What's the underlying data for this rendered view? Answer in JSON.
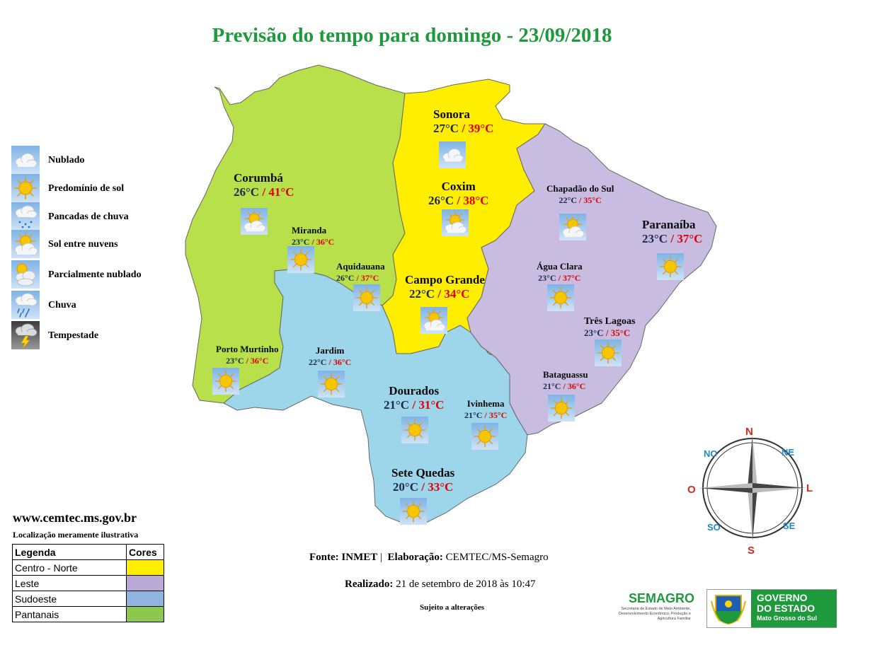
{
  "title": "Previsão do tempo para domingo - 23/09/2018",
  "icon_legend": [
    {
      "label": "Nublado",
      "icon": "cloudy-icon"
    },
    {
      "label": "Predomínio de sol",
      "icon": "sun-icon"
    },
    {
      "label": "Pancadas de chuva",
      "icon": "showers-icon"
    },
    {
      "label": "Sol entre nuvens",
      "icon": "sun-cloud-icon"
    },
    {
      "label": "Parcialmente nublado",
      "icon": "partly-cloudy-icon"
    },
    {
      "label": "Chuva",
      "icon": "rain-icon"
    },
    {
      "label": "Tempestade",
      "icon": "storm-icon"
    }
  ],
  "region_colors": {
    "centro_norte": "#ffee00",
    "leste": "#c8bce0",
    "sudoeste": "#9dd6ea",
    "pantanais": "#b8e04a",
    "legend_sudoeste": "#8fb4e0",
    "legend_pantanais": "#8cc850"
  },
  "cities": {
    "corumba": {
      "name": "Corumbá",
      "tmin": "26°C",
      "tmax": "41°C",
      "icon": "sun-cloud-icon"
    },
    "sonora": {
      "name": "Sonora",
      "tmin": "27°C",
      "tmax": "39°C",
      "icon": "cloudy-icon"
    },
    "coxim": {
      "name": "Coxim",
      "tmin": "26°C",
      "tmax": "38°C",
      "icon": "sun-cloud-icon"
    },
    "chapadao": {
      "name": "Chapadão do Sul",
      "tmin": "22°C",
      "tmax": "35°C",
      "icon": "sun-cloud-icon"
    },
    "paranaiba": {
      "name": "Paranaíba",
      "tmin": "23°C",
      "tmax": "37°C",
      "icon": "sun-icon"
    },
    "miranda": {
      "name": "Miranda",
      "tmin": "23°C",
      "tmax": "36°C",
      "icon": "sun-icon"
    },
    "aquidauana": {
      "name": "Aquidauana",
      "tmin": "26°C",
      "tmax": "37°C",
      "icon": "sun-icon"
    },
    "campo_grande": {
      "name": "Campo Grande",
      "tmin": "22°C",
      "tmax": "34°C",
      "icon": "sun-cloud-icon"
    },
    "agua_clara": {
      "name": "Água Clara",
      "tmin": "23°C",
      "tmax": "37°C",
      "icon": "sun-icon"
    },
    "tres_lagoas": {
      "name": "Três Lagoas",
      "tmin": "23°C",
      "tmax": "35°C",
      "icon": "sun-icon"
    },
    "porto_murtinho": {
      "name": "Porto Murtinho",
      "tmin": "23°C",
      "tmax": "36°C",
      "icon": "sun-icon"
    },
    "jardim": {
      "name": "Jardim",
      "tmin": "22°C",
      "tmax": "36°C",
      "icon": "sun-icon"
    },
    "bataguassu": {
      "name": "Bataguassu",
      "tmin": "21°C",
      "tmax": "36°C",
      "icon": "sun-icon"
    },
    "dourados": {
      "name": "Dourados",
      "tmin": "21°C",
      "tmax": "31°C",
      "icon": "sun-icon"
    },
    "ivinhema": {
      "name": "Ivinhema",
      "tmin": "21°C",
      "tmax": "35°C",
      "icon": "sun-icon"
    },
    "sete_quedas": {
      "name": "Sete Quedas",
      "tmin": "20°C",
      "tmax": "33°C",
      "icon": "sun-icon"
    }
  },
  "temp_separator": "/",
  "website": "www.cemtec.ms.gov.br",
  "location_note": "Localização meramente ilustrativa",
  "regions_table": {
    "header_legend": "Legenda",
    "header_colors": "Cores",
    "rows": [
      {
        "label": "Centro - Norte"
      },
      {
        "label": "Leste"
      },
      {
        "label": "Sudoeste"
      },
      {
        "label": "Pantanais"
      }
    ]
  },
  "source": {
    "label1": "Fonte:",
    "value1": "INMET",
    "divider": "|",
    "label2": "Elaboração:",
    "value2": "CEMTEC/MS-Semagro"
  },
  "made": {
    "label": "Realizado:",
    "value": "21 de setembro de 2018 às 10:47"
  },
  "subject_note": "Sujeito a alterações",
  "compass": {
    "n": "N",
    "s": "S",
    "l": "L",
    "o": "O",
    "ne": "NE",
    "no": "NO",
    "se": "SE",
    "so": "SO"
  },
  "semagro": {
    "name": "SEMAGRO",
    "subtitle": "Secretaria de Estado de Meio Ambiente, Desenvolvimento Econômico, Produção e Agricultura Familiar"
  },
  "government": {
    "line1": "GOVERNO",
    "line2": "DO ESTADO",
    "line3": "Mato Grosso do Sul"
  }
}
